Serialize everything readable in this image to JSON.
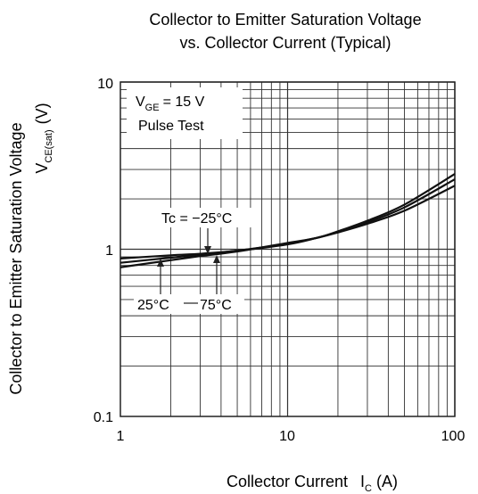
{
  "chart_data": {
    "type": "line",
    "title": "Collector to Emitter Saturation Voltage",
    "subtitle": "vs. Collector Current (Typical)",
    "xlabel": "Collector Current",
    "xlabel_symbol": "I",
    "xlabel_sub": "C",
    "xlabel_unit": "(A)",
    "ylabel": "Collector to Emitter Saturation Voltage",
    "ylabel_symbol": "V",
    "ylabel_sub": "CE(sat)",
    "ylabel_unit": "(V)",
    "x_scale": "log",
    "y_scale": "log",
    "xlim": [
      1,
      100
    ],
    "ylim": [
      0.1,
      10
    ],
    "x_ticks": [
      "1",
      "10",
      "100"
    ],
    "y_ticks": [
      "0.1",
      "1",
      "10"
    ],
    "grid": true,
    "condition": {
      "symbol": "V",
      "sub": "GE",
      "value": "= 15 V",
      "note": "Pulse Test"
    },
    "annotations": {
      "tc_label": "Tc = −25°C",
      "label_25": "25°C",
      "label_75": "75°C"
    },
    "series": [
      {
        "name": "Tc = −25°C",
        "x": [
          1,
          2,
          3,
          5,
          10,
          15,
          20,
          30,
          50,
          100
        ],
        "y": [
          0.88,
          0.92,
          0.94,
          0.98,
          1.07,
          1.17,
          1.26,
          1.42,
          1.7,
          2.4
        ]
      },
      {
        "name": "25°C",
        "x": [
          1,
          2,
          3,
          5,
          10,
          15,
          20,
          30,
          50,
          100
        ],
        "y": [
          0.83,
          0.89,
          0.93,
          0.98,
          1.08,
          1.17,
          1.27,
          1.45,
          1.78,
          2.62
        ]
      },
      {
        "name": "75°C",
        "x": [
          1,
          2,
          3,
          5,
          10,
          15,
          20,
          30,
          50,
          100
        ],
        "y": [
          0.78,
          0.86,
          0.91,
          0.97,
          1.09,
          1.17,
          1.28,
          1.48,
          1.85,
          2.82
        ]
      }
    ]
  }
}
